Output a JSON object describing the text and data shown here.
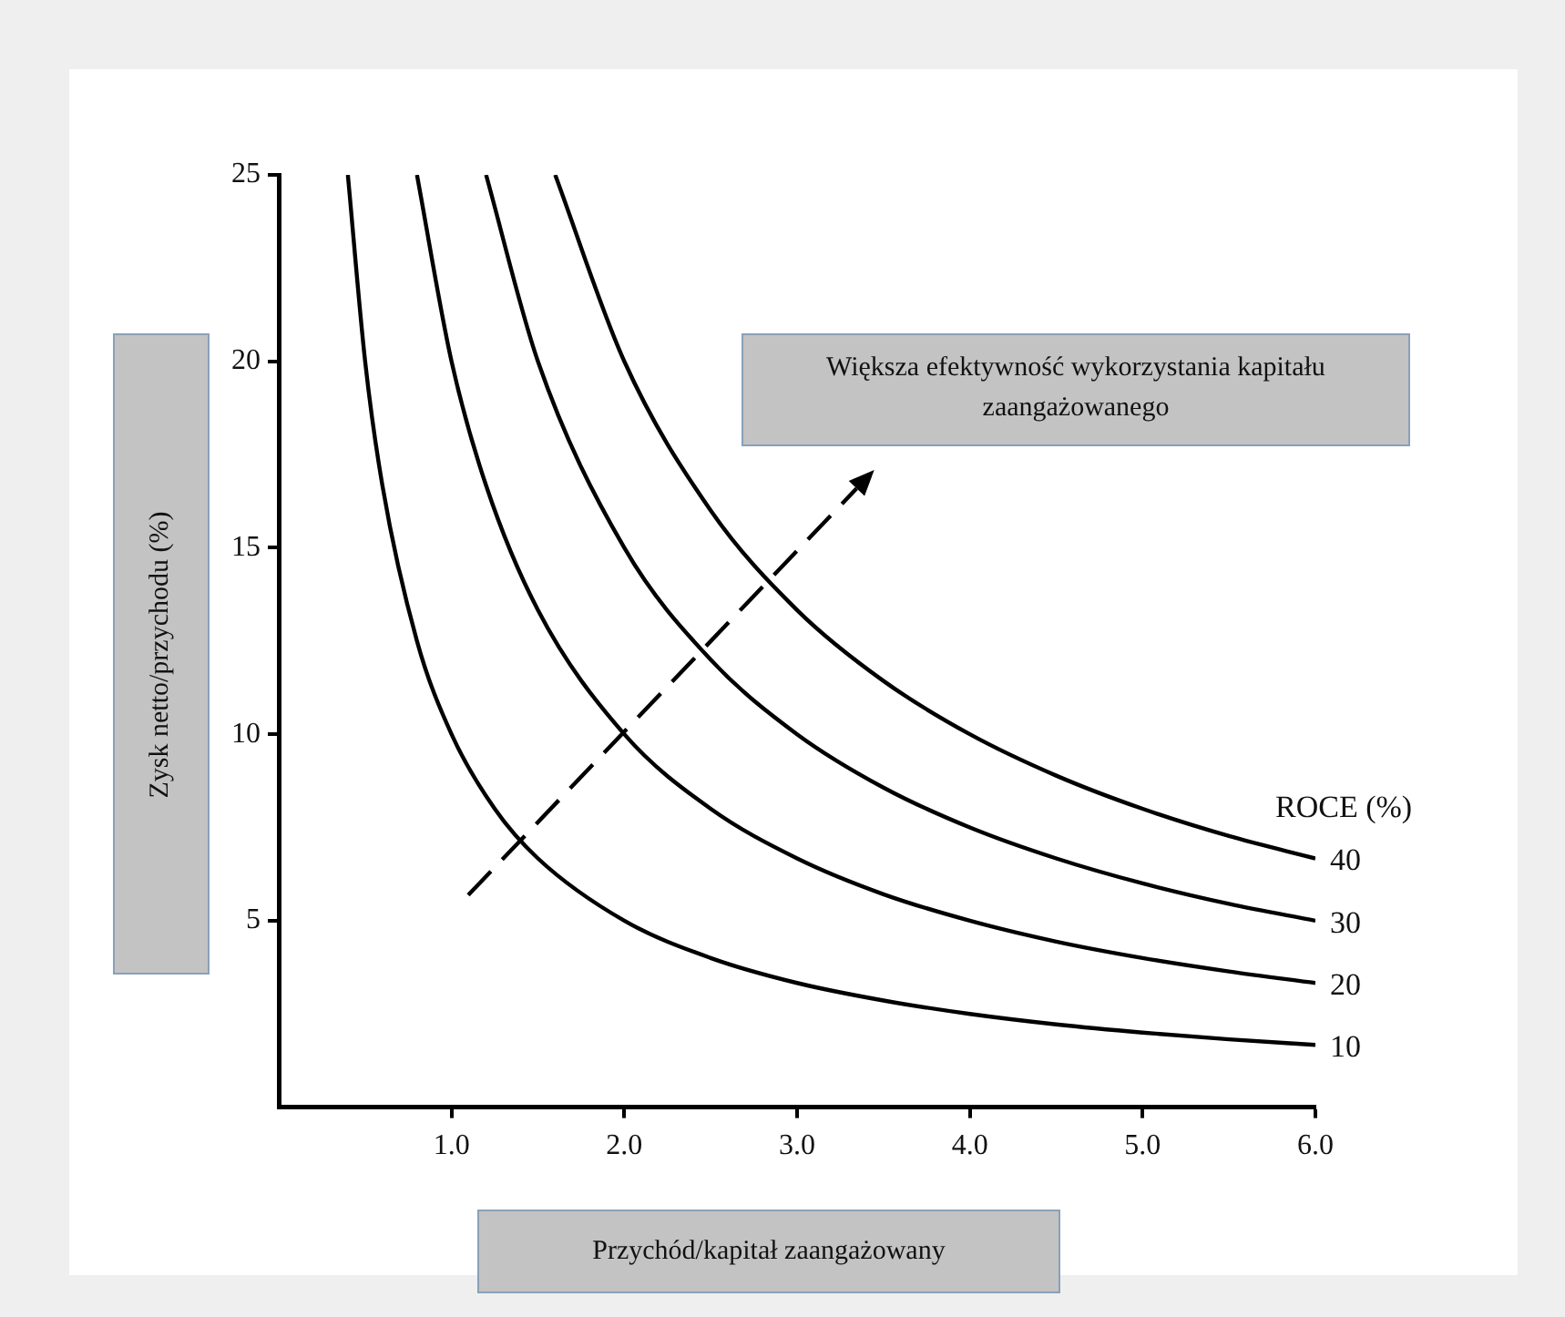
{
  "chart_data": {
    "type": "line",
    "xlabel": "Przychód/kapitał zaangażowany",
    "ylabel": "Zysk netto/przychodu (%)",
    "legend_title": "ROCE (%)",
    "annotations": [
      "Większa efektywność wykorzystania kapitału zaangażowanego"
    ],
    "xlim": [
      0,
      6
    ],
    "ylim": [
      0,
      25
    ],
    "xticks": [
      {
        "value": 1,
        "label": "1.0"
      },
      {
        "value": 2,
        "label": "2.0"
      },
      {
        "value": 3,
        "label": "3.0"
      },
      {
        "value": 4,
        "label": "4.0"
      },
      {
        "value": 5,
        "label": "5.0"
      },
      {
        "value": 6,
        "label": "6.0"
      }
    ],
    "yticks": [
      5,
      10,
      15,
      20,
      25
    ],
    "grid": false,
    "marker": "none",
    "line_style": "solid",
    "series": [
      {
        "name": "10",
        "color": "#000000",
        "x": [
          0.4,
          0.5,
          0.6,
          0.8,
          1,
          1.25,
          1.5,
          2,
          2.5,
          3,
          3.5,
          4,
          4.5,
          5,
          5.5,
          6
        ],
        "values": [
          25,
          20,
          16.67,
          12.5,
          10,
          8,
          6.67,
          5,
          4,
          3.33,
          2.86,
          2.5,
          2.22,
          2,
          1.82,
          1.67
        ]
      },
      {
        "name": "20",
        "color": "#000000",
        "x": [
          0.8,
          1,
          1.2,
          1.5,
          2,
          2.5,
          3,
          3.5,
          4,
          4.5,
          5,
          5.5,
          6
        ],
        "values": [
          25,
          20,
          16.67,
          13.33,
          10,
          8,
          6.67,
          5.71,
          5,
          4.44,
          4,
          3.64,
          3.33
        ]
      },
      {
        "name": "30",
        "color": "#000000",
        "x": [
          1.2,
          1.5,
          2,
          2.5,
          3,
          3.5,
          4,
          4.5,
          5,
          5.5,
          6
        ],
        "values": [
          25,
          20,
          15,
          12,
          10,
          8.57,
          7.5,
          6.67,
          6,
          5.45,
          5
        ]
      },
      {
        "name": "40",
        "color": "#000000",
        "x": [
          1.6,
          2,
          2.5,
          3,
          3.5,
          4,
          4.5,
          5,
          5.5,
          6
        ],
        "values": [
          25,
          20,
          16,
          13.33,
          11.43,
          10,
          8.89,
          8,
          7.27,
          6.67
        ]
      }
    ]
  }
}
